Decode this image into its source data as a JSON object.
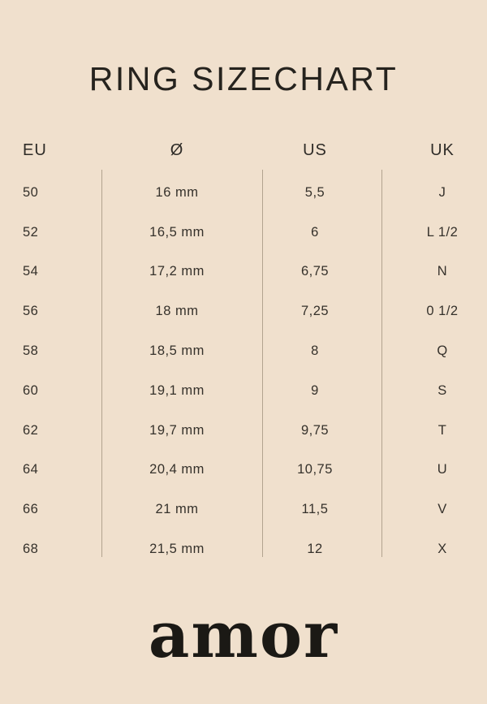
{
  "page": {
    "background_color": "#f0e0cd",
    "text_color": "#2f2c28",
    "divider_color": "#b2a38f",
    "brand": "amor"
  },
  "chart_data": {
    "type": "table",
    "title": "RING SIZECHART",
    "columns": [
      "EU",
      "Ø",
      "US",
      "UK"
    ],
    "rows": [
      [
        "50",
        "16 mm",
        "5,5",
        "J"
      ],
      [
        "52",
        "16,5 mm",
        "6",
        "L 1/2"
      ],
      [
        "54",
        "17,2 mm",
        "6,75",
        "N"
      ],
      [
        "56",
        "18 mm",
        "7,25",
        "0 1/2"
      ],
      [
        "58",
        "18,5 mm",
        "8",
        "Q"
      ],
      [
        "60",
        "19,1 mm",
        "9",
        "S"
      ],
      [
        "62",
        "19,7 mm",
        "9,75",
        "T"
      ],
      [
        "64",
        "20,4 mm",
        "10,75",
        "U"
      ],
      [
        "66",
        "21 mm",
        "11,5",
        "V"
      ],
      [
        "68",
        "21,5 mm",
        "12",
        "X"
      ]
    ],
    "layout": {
      "grid": "off",
      "column_dividers": true,
      "header_position": "top"
    }
  }
}
